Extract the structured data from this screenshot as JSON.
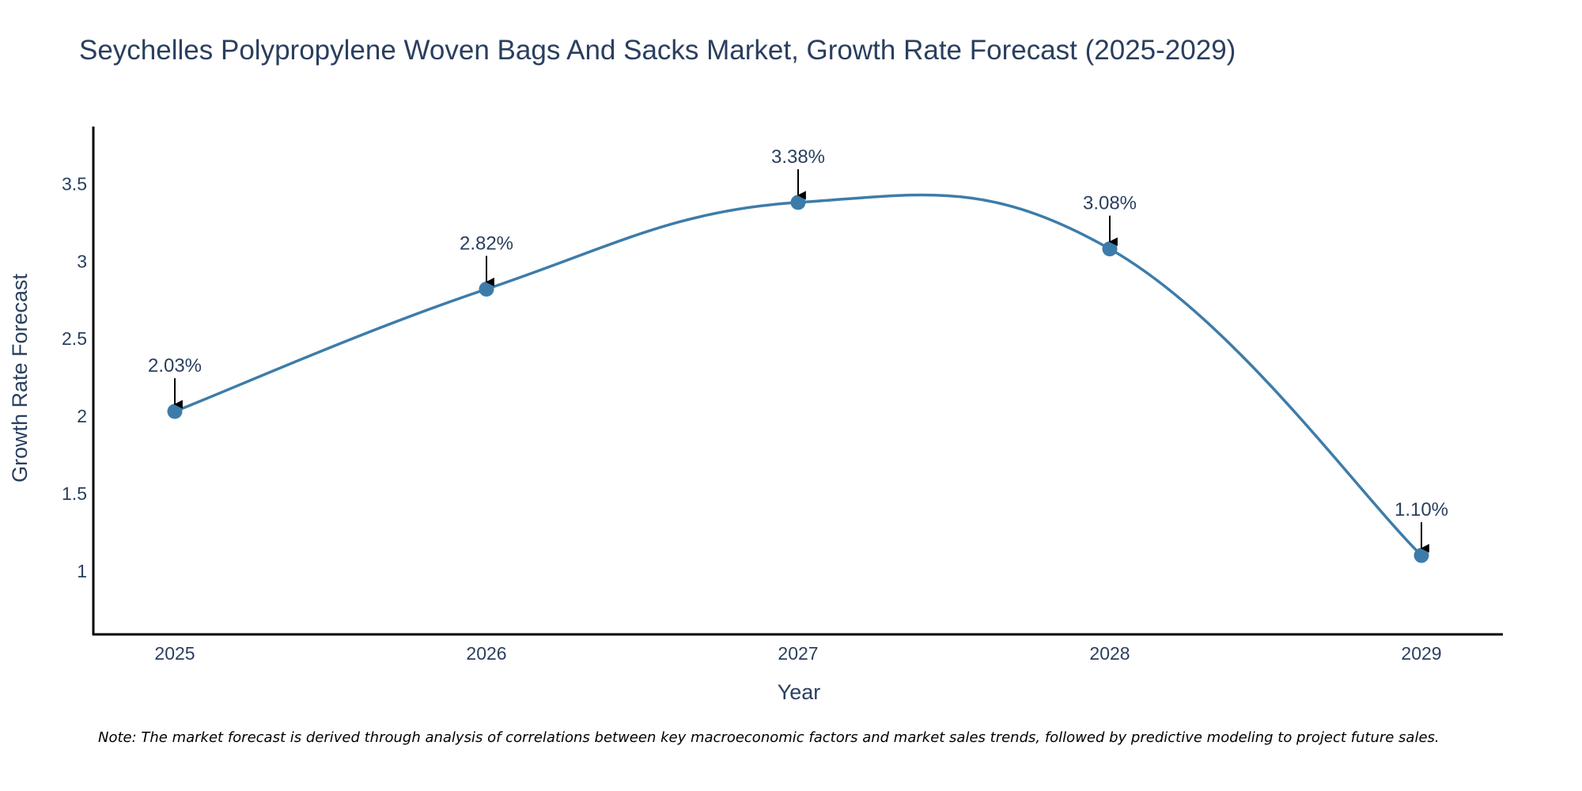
{
  "chart_data": {
    "type": "line",
    "title": "Seychelles Polypropylene Woven Bags And Sacks Market, Growth Rate Forecast (2025-2029)",
    "xlabel": "Year",
    "ylabel": "Growth Rate Forecast",
    "categories": [
      "2025",
      "2026",
      "2027",
      "2028",
      "2029"
    ],
    "values": [
      2.03,
      2.82,
      3.38,
      3.08,
      1.1
    ],
    "data_labels": [
      "2.03%",
      "2.82%",
      "3.38%",
      "3.08%",
      "1.10%"
    ],
    "yticks": [
      1,
      1.5,
      2,
      2.5,
      3,
      3.5
    ],
    "ytick_labels": [
      "1",
      "1.5",
      "2",
      "2.5",
      "3",
      "3.5"
    ],
    "ylim": [
      0.59,
      3.87
    ],
    "grid": false,
    "line_shape": "spline",
    "line_color": "#3d7ca9",
    "marker_color": "#3d7ca9",
    "axis_color": "#000000",
    "text_color": "#2a3f5f"
  },
  "footnote": "Note: The market forecast is derived through analysis of correlations between key macroeconomic factors and market sales trends, followed by predictive modeling to project future sales."
}
